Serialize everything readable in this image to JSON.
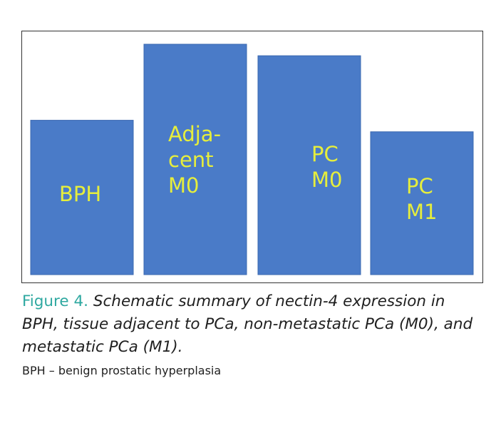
{
  "chart_data": {
    "type": "bar",
    "title": "",
    "xlabel": "",
    "ylabel": "",
    "categories": [
      [
        "BPH"
      ],
      [
        "Adja-",
        "cent",
        "M0"
      ],
      [
        "PC",
        "M0"
      ],
      [
        "PC",
        "M1"
      ]
    ],
    "values": [
      67,
      100,
      95,
      62
    ],
    "ylim": [
      0,
      100
    ],
    "grid": false,
    "bar_color": "#4a7bc8",
    "label_color": "#e6ee3c"
  },
  "caption": {
    "figure_label": "Figure 4.",
    "text": "Schematic summary of nectin-4 expression in BPH, tissue adjacent to PCa, non-metastatic PCa (M0), and metastatic PCa (M1).",
    "footnote": "BPH – benign prostatic hyperplasia"
  },
  "colors": {
    "figure_label": "#2ea8a0",
    "text": "#1f1f1f",
    "frame": "#333333"
  }
}
